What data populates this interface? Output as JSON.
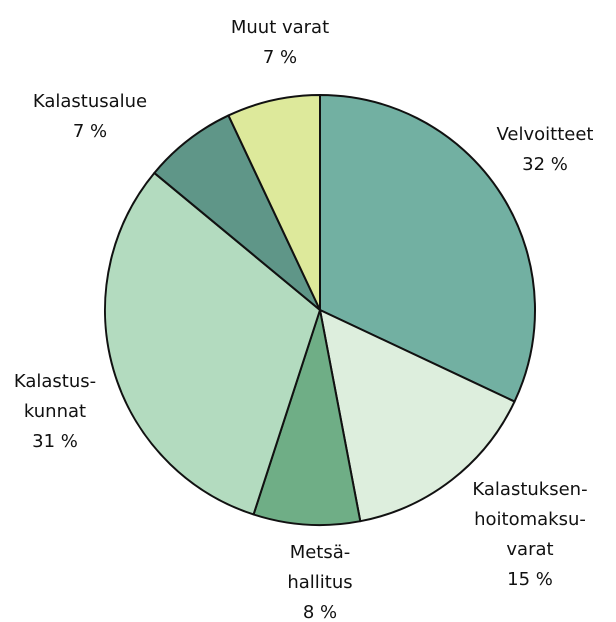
{
  "chart_data": {
    "type": "pie",
    "categories": [
      "Velvoitteet",
      "Kalastuksen-\nhoitomaksu-\nvarat",
      "Metsä-\nhallitus",
      "Kalastus-\nkunnat",
      "Kalastusalue",
      "Muut varat"
    ],
    "values": [
      32,
      15,
      8,
      31,
      7,
      7
    ],
    "value_labels": [
      "32 %",
      "15 %",
      "8 %",
      "31 %",
      "7 %",
      "7 %"
    ],
    "colors": [
      "#72b0a2",
      "#ddeedd",
      "#6fae86",
      "#b3dbbf",
      "#5f9688",
      "#dde99b"
    ]
  }
}
